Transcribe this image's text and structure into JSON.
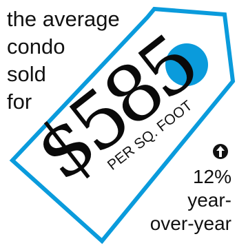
{
  "headline": {
    "line1": "the average",
    "line2": "condo",
    "line3": "sold",
    "line4": "for"
  },
  "price": {
    "value": "$585",
    "unit": "PER SQ. FOOT"
  },
  "change": {
    "direction": "up",
    "percent": "12%",
    "period_line1": "year-",
    "period_line2": "over-year"
  },
  "colors": {
    "accent": "#0a9bdc",
    "text": "#111111"
  },
  "icons": {
    "tag_hole": "circle",
    "trend": "arrow-up-icon"
  }
}
